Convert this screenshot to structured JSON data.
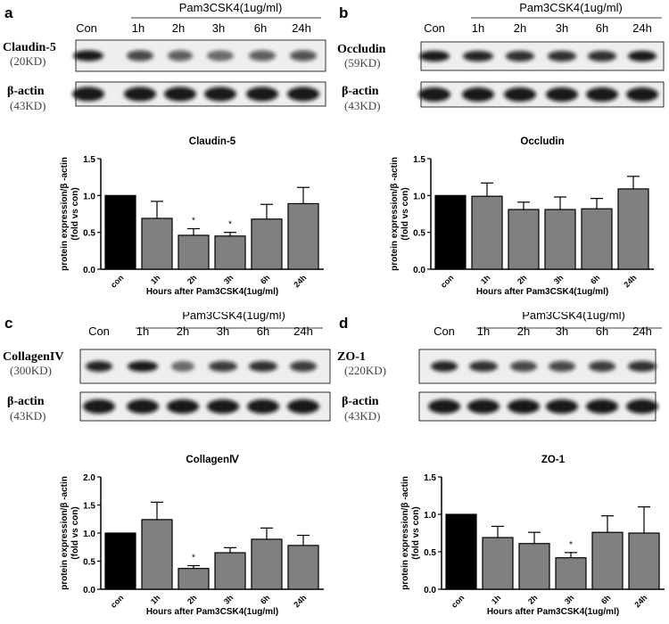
{
  "treatment_label": "Pam3CSK4(1ug/ml)",
  "lanes": [
    "Con",
    "1h",
    "2h",
    "3h",
    "6h",
    "24h"
  ],
  "loading_control": {
    "name": "β-actin",
    "size": "(43KD)"
  },
  "panels": [
    {
      "letter": "a",
      "protein": "Claudin-5",
      "size": "(20KD)"
    },
    {
      "letter": "b",
      "protein": "Occludin",
      "size": "(59KD)"
    },
    {
      "letter": "c",
      "protein": "CollagenIV",
      "size": "(300KD)"
    },
    {
      "letter": "d",
      "protein": "ZO-1",
      "size": "(220KD)"
    }
  ],
  "colors": {
    "control_bar": "#000000",
    "treatment_bar": "#808080"
  },
  "chart_data": [
    {
      "type": "bar",
      "title": "Claudin-5",
      "categories": [
        "con",
        "1h",
        "2h",
        "3h",
        "6h",
        "24h"
      ],
      "values": [
        1.0,
        0.69,
        0.46,
        0.45,
        0.68,
        0.89
      ],
      "errors": [
        0,
        0.23,
        0.09,
        0.05,
        0.2,
        0.22
      ],
      "significance": [
        "",
        "",
        "*",
        "*",
        "",
        ""
      ],
      "ylabel": "protein expression/β -actin\n(fold vs con)",
      "ylabel_lines": [
        "protein expression/β -actin",
        "(fold vs con)"
      ],
      "xlabel": "Hours after Pam3CSK4(1ug/ml)",
      "ylim": [
        0,
        1.5
      ],
      "yticks": [
        "0.0",
        "0.5",
        "1.0",
        "1.5"
      ]
    },
    {
      "type": "bar",
      "title": "Occludin",
      "categories": [
        "con",
        "1h",
        "2h",
        "3h",
        "6h",
        "24h"
      ],
      "values": [
        1.0,
        0.99,
        0.81,
        0.81,
        0.82,
        1.09
      ],
      "errors": [
        0,
        0.18,
        0.1,
        0.17,
        0.14,
        0.17
      ],
      "significance": [
        "",
        "",
        "",
        "",
        "",
        ""
      ],
      "ylabel_lines": [
        "protein expression/β -actin",
        "(fold vs con)"
      ],
      "xlabel": "Hours after Pam3CSK4(1ug/ml)",
      "ylim": [
        0,
        1.5
      ],
      "yticks": [
        "0.0",
        "0.5",
        "1.0",
        "1.5"
      ]
    },
    {
      "type": "bar",
      "title": "CollagenⅣ",
      "categories": [
        "con",
        "1h",
        "2h",
        "3h",
        "6h",
        "24h"
      ],
      "values": [
        1.0,
        1.24,
        0.37,
        0.65,
        0.89,
        0.78
      ],
      "errors": [
        0,
        0.31,
        0.05,
        0.09,
        0.2,
        0.18
      ],
      "significance": [
        "",
        "",
        "*",
        "",
        "",
        ""
      ],
      "ylabel_lines": [
        "protein expression/β -actin",
        "(fold vs con)"
      ],
      "xlabel": "Hours after Pam3CSK4(1ug/ml)",
      "ylim": [
        0,
        2.0
      ],
      "yticks": [
        "0.0",
        "0.5",
        "1.0",
        "1.5",
        "2.0"
      ]
    },
    {
      "type": "bar",
      "title": "ZO-1",
      "categories": [
        "con",
        "1h",
        "2h",
        "3h",
        "6h",
        "24h"
      ],
      "values": [
        1.0,
        0.69,
        0.61,
        0.42,
        0.76,
        0.75
      ],
      "errors": [
        0,
        0.15,
        0.15,
        0.07,
        0.22,
        0.35
      ],
      "significance": [
        "",
        "",
        "",
        "*",
        "",
        ""
      ],
      "ylabel_lines": [
        "protein expression/β -actin",
        "(fold vs con)"
      ],
      "xlabel": "Hours after Pam3CSK4(1ug/ml)",
      "ylim": [
        0,
        1.5
      ],
      "yticks": [
        "0.0",
        "0.5",
        "1.0",
        "1.5"
      ]
    }
  ]
}
